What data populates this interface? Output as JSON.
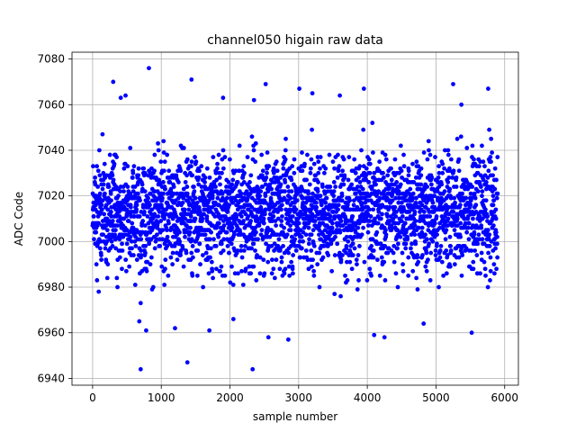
{
  "chart_data": {
    "type": "scatter",
    "title": "channel050 higain raw data",
    "xlabel": "sample number",
    "ylabel": "ADC Code",
    "xlim": [
      -300,
      6200
    ],
    "ylim": [
      6937,
      7083
    ],
    "x_ticks": [
      0,
      1000,
      2000,
      3000,
      4000,
      5000,
      6000
    ],
    "x_tick_labels": [
      "0",
      "1000",
      "2000",
      "3000",
      "4000",
      "5000",
      "6000"
    ],
    "y_ticks": [
      6940,
      6960,
      6980,
      7000,
      7020,
      7040,
      7060,
      7080
    ],
    "y_tick_labels": [
      "6940",
      "6960",
      "6980",
      "7000",
      "7020",
      "7040",
      "7060",
      "7080"
    ],
    "grid": true,
    "marker_color": "#0000ff",
    "series": [
      {
        "n_points": 5900,
        "x_range": [
          0,
          5899
        ],
        "central_band": [
          6990,
          7035
        ],
        "center": 7013,
        "outliers": [
          {
            "x": 820,
            "y": 7076
          },
          {
            "x": 1440,
            "y": 7071
          },
          {
            "x": 5250,
            "y": 7069
          },
          {
            "x": 2520,
            "y": 7069
          },
          {
            "x": 300,
            "y": 7070
          },
          {
            "x": 410,
            "y": 7063
          },
          {
            "x": 3010,
            "y": 7067
          },
          {
            "x": 3950,
            "y": 7067
          },
          {
            "x": 5760,
            "y": 7067
          },
          {
            "x": 1900,
            "y": 7063
          },
          {
            "x": 2350,
            "y": 7062
          },
          {
            "x": 3200,
            "y": 7065
          },
          {
            "x": 3600,
            "y": 7064
          },
          {
            "x": 5370,
            "y": 7060
          },
          {
            "x": 480,
            "y": 7064
          },
          {
            "x": 700,
            "y": 6944
          },
          {
            "x": 2330,
            "y": 6944
          },
          {
            "x": 1380,
            "y": 6947
          },
          {
            "x": 780,
            "y": 6961
          },
          {
            "x": 2560,
            "y": 6958
          },
          {
            "x": 2850,
            "y": 6957
          },
          {
            "x": 4100,
            "y": 6959
          },
          {
            "x": 4250,
            "y": 6958
          },
          {
            "x": 5520,
            "y": 6960
          },
          {
            "x": 680,
            "y": 6965
          },
          {
            "x": 1700,
            "y": 6961
          },
          {
            "x": 4820,
            "y": 6964
          },
          {
            "x": 2050,
            "y": 6966
          },
          {
            "x": 1200,
            "y": 6962
          }
        ]
      }
    ]
  }
}
